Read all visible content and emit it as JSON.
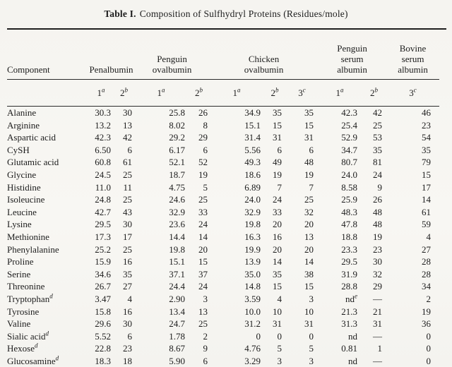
{
  "title": {
    "label": "Table I.",
    "caption": "Composition of Sulfhydryl Proteins (Residues/mole)"
  },
  "table": {
    "component_header": "Component",
    "groups": [
      {
        "name": "Penalbumin",
        "subcols": [
          {
            "n": "1",
            "s": "a"
          },
          {
            "n": "2",
            "s": "b"
          }
        ]
      },
      {
        "name": "Penguin\novalbumin",
        "subcols": [
          {
            "n": "1",
            "s": "a"
          },
          {
            "n": "2",
            "s": "b"
          }
        ]
      },
      {
        "name": "Chicken\novalbumin",
        "subcols": [
          {
            "n": "1",
            "s": "a"
          },
          {
            "n": "2",
            "s": "b"
          },
          {
            "n": "3",
            "s": "c"
          }
        ]
      },
      {
        "name": "Penguin\nserum\nalbumin",
        "subcols": [
          {
            "n": "1",
            "s": "a"
          },
          {
            "n": "2",
            "s": "b"
          }
        ]
      },
      {
        "name": "Bovine\nserum\nalbumin",
        "subcols": [
          {
            "n": "3",
            "s": "c"
          }
        ]
      }
    ],
    "rows": [
      {
        "component": "Alanine",
        "values": [
          "30.3",
          "30",
          "25.8",
          "26",
          "34.9",
          "35",
          "35",
          "42.3",
          "42",
          "46"
        ]
      },
      {
        "component": "Arginine",
        "values": [
          "13.2",
          "13",
          "8.02",
          "8",
          "15.1",
          "15",
          "15",
          "25.4",
          "25",
          "23"
        ]
      },
      {
        "component": "Aspartic acid",
        "values": [
          "42.3",
          "42",
          "29.2",
          "29",
          "31.4",
          "31",
          "31",
          "52.9",
          "53",
          "54"
        ]
      },
      {
        "component": "CySH",
        "values": [
          "6.50",
          "6",
          "6.17",
          "6",
          "5.56",
          "6",
          "6",
          "34.7",
          "35",
          "35"
        ]
      },
      {
        "component": "Glutamic acid",
        "values": [
          "60.8",
          "61",
          "52.1",
          "52",
          "49.3",
          "49",
          "48",
          "80.7",
          "81",
          "79"
        ]
      },
      {
        "component": "Glycine",
        "values": [
          "24.5",
          "25",
          "18.7",
          "19",
          "18.6",
          "19",
          "19",
          "24.0",
          "24",
          "15"
        ]
      },
      {
        "component": "Histidine",
        "values": [
          "11.0",
          "11",
          "4.75",
          "5",
          "6.89",
          "7",
          "7",
          "8.58",
          "9",
          "17"
        ]
      },
      {
        "component": "Isoleucine",
        "values": [
          "24.8",
          "25",
          "24.6",
          "25",
          "24.0",
          "24",
          "25",
          "25.9",
          "26",
          "14"
        ]
      },
      {
        "component": "Leucine",
        "values": [
          "42.7",
          "43",
          "32.9",
          "33",
          "32.9",
          "33",
          "32",
          "48.3",
          "48",
          "61"
        ]
      },
      {
        "component": "Lysine",
        "values": [
          "29.5",
          "30",
          "23.6",
          "24",
          "19.8",
          "20",
          "20",
          "47.8",
          "48",
          "59"
        ]
      },
      {
        "component": "Methionine",
        "values": [
          "17.3",
          "17",
          "14.4",
          "14",
          "16.3",
          "16",
          "13",
          "18.8",
          "19",
          "4"
        ]
      },
      {
        "component": "Phenylalanine",
        "values": [
          "25.2",
          "25",
          "19.8",
          "20",
          "19.9",
          "20",
          "20",
          "23.3",
          "23",
          "27"
        ]
      },
      {
        "component": "Proline",
        "values": [
          "15.9",
          "16",
          "15.1",
          "15",
          "13.9",
          "14",
          "14",
          "29.5",
          "30",
          "28"
        ]
      },
      {
        "component": "Serine",
        "values": [
          "34.6",
          "35",
          "37.1",
          "37",
          "35.0",
          "35",
          "38",
          "31.9",
          "32",
          "28"
        ]
      },
      {
        "component": "Threonine",
        "values": [
          "26.7",
          "27",
          "24.4",
          "24",
          "14.8",
          "15",
          "15",
          "28.8",
          "29",
          "34"
        ]
      },
      {
        "component": "Tryptophan^d",
        "values": [
          "3.47",
          "4",
          "2.90",
          "3",
          "3.59",
          "4",
          "3",
          "nd^e",
          "—",
          "2"
        ]
      },
      {
        "component": "Tyrosine",
        "values": [
          "15.8",
          "16",
          "13.4",
          "13",
          "10.0",
          "10",
          "10",
          "21.3",
          "21",
          "19"
        ]
      },
      {
        "component": "Valine",
        "values": [
          "29.6",
          "30",
          "24.7",
          "25",
          "31.2",
          "31",
          "31",
          "31.3",
          "31",
          "36"
        ]
      },
      {
        "component": "Sialic acid^d",
        "values": [
          "5.52",
          "6",
          "1.78",
          "2",
          "0",
          "0",
          "0",
          "nd",
          "—",
          "0"
        ]
      },
      {
        "component": "Hexose^d",
        "values": [
          "22.8",
          "23",
          "8.67",
          "9",
          "4.76",
          "5",
          "5",
          "0.81",
          "1",
          "0"
        ]
      },
      {
        "component": "Glucosamine^d",
        "values": [
          "18.3",
          "18",
          "5.90",
          "6",
          "3.29",
          "3",
          "3",
          "nd",
          "—",
          "0"
        ]
      }
    ]
  }
}
